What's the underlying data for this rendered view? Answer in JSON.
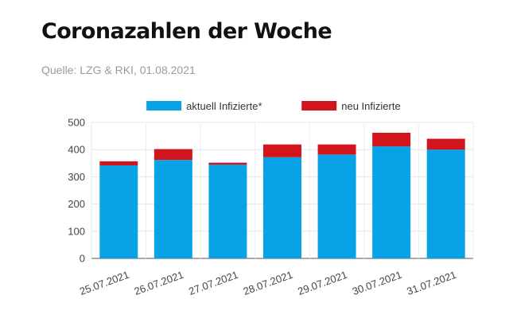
{
  "page": {
    "title": "Coronazahlen der Woche",
    "source": "Quelle: LZG & RKI, 01.08.2021"
  },
  "chart_data": {
    "type": "bar",
    "stacked": true,
    "categories": [
      "25.07.2021",
      "26.07.2021",
      "27.07.2021",
      "28.07.2021",
      "29.07.2021",
      "30.07.2021",
      "31.07.2021"
    ],
    "series": [
      {
        "name": "aktuell Infizierte*",
        "color": "#0aa2e6",
        "values": [
          342,
          362,
          345,
          372,
          382,
          412,
          400
        ]
      },
      {
        "name": "neu Infizierte",
        "color": "#d2141c",
        "values": [
          15,
          40,
          7,
          47,
          37,
          50,
          40
        ]
      }
    ],
    "ylim": [
      0,
      500
    ],
    "yticks": [
      0,
      100,
      200,
      300,
      400,
      500
    ],
    "grid": true,
    "legend": "top"
  }
}
